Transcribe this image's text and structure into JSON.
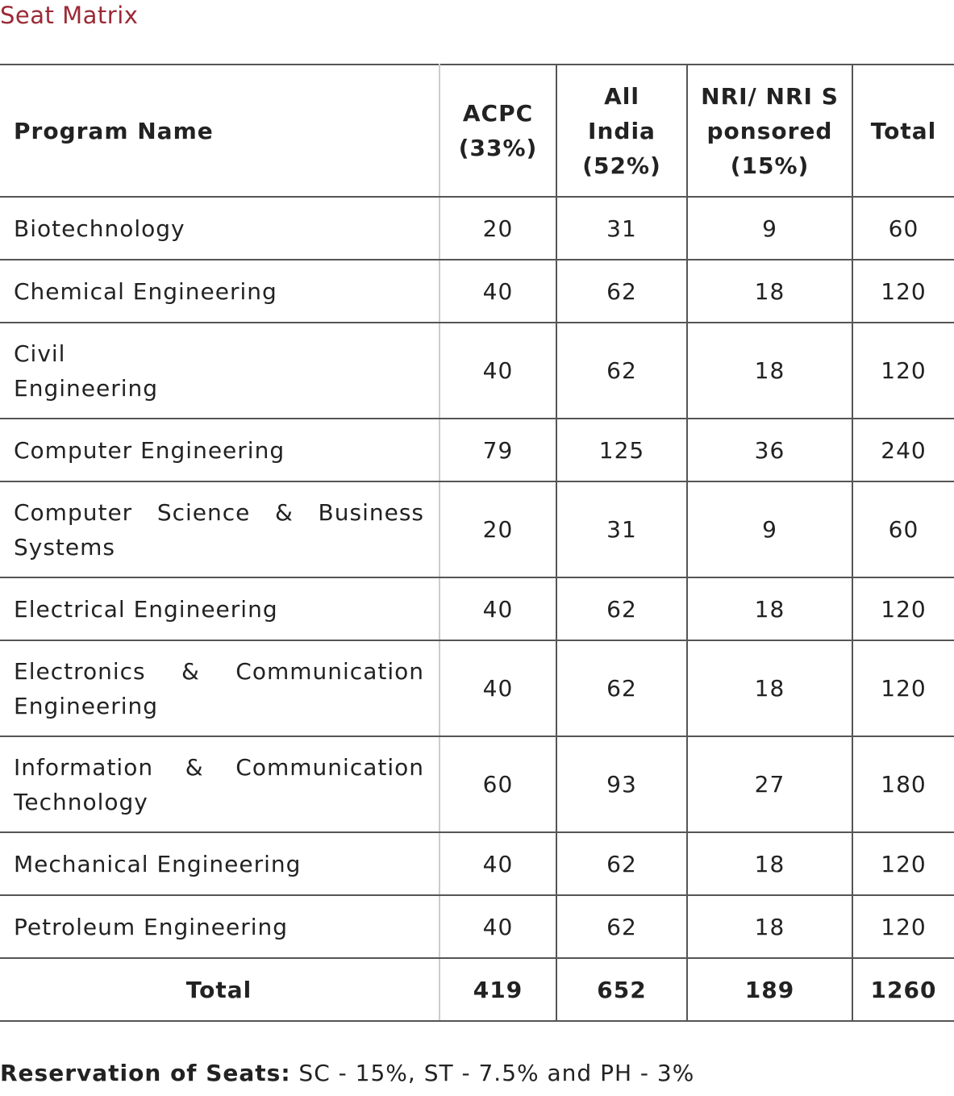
{
  "title": "Seat Matrix",
  "headers": [
    "Program Name",
    "ACPC (33%)",
    "All India (52%)",
    "NRI/ NRI Sponsored (15%)",
    "Total"
  ],
  "rows": [
    {
      "name": "Biotechnology",
      "acpc": "20",
      "all_india": "31",
      "nri": "9",
      "total": "60"
    },
    {
      "name": "Chemical Engineering",
      "acpc": "40",
      "all_india": "62",
      "nri": "18",
      "total": "120"
    },
    {
      "name": "Civil Engineering",
      "acpc": "40",
      "all_india": "62",
      "nri": "18",
      "total": "120"
    },
    {
      "name": "Computer Engineering",
      "acpc": "79",
      "all_india": "125",
      "nri": "36",
      "total": "240"
    },
    {
      "name": "Computer Science & Business Systems",
      "acpc": "20",
      "all_india": "31",
      "nri": "9",
      "total": "60"
    },
    {
      "name": "Electrical Engineering",
      "acpc": "40",
      "all_india": "62",
      "nri": "18",
      "total": "120"
    },
    {
      "name": "Electronics & Communication Engineering",
      "acpc": "40",
      "all_india": "62",
      "nri": "18",
      "total": "120"
    },
    {
      "name": "Information & Communication Technology",
      "acpc": "60",
      "all_india": "93",
      "nri": "27",
      "total": "180"
    },
    {
      "name": "Mechanical Engineering",
      "acpc": "40",
      "all_india": "62",
      "nri": "18",
      "total": "120"
    },
    {
      "name": "Petroleum Engineering",
      "acpc": "40",
      "all_india": "62",
      "nri": "18",
      "total": "120"
    }
  ],
  "totals": {
    "label": "Total",
    "acpc": "419",
    "all_india": "652",
    "nri": "189",
    "total": "1260"
  },
  "footer": {
    "label": "Reservation of Seats:",
    "text": " SC - 15%, ST - 7.5% and PH - 3%"
  },
  "colors": {
    "title": "#9b2a35"
  }
}
